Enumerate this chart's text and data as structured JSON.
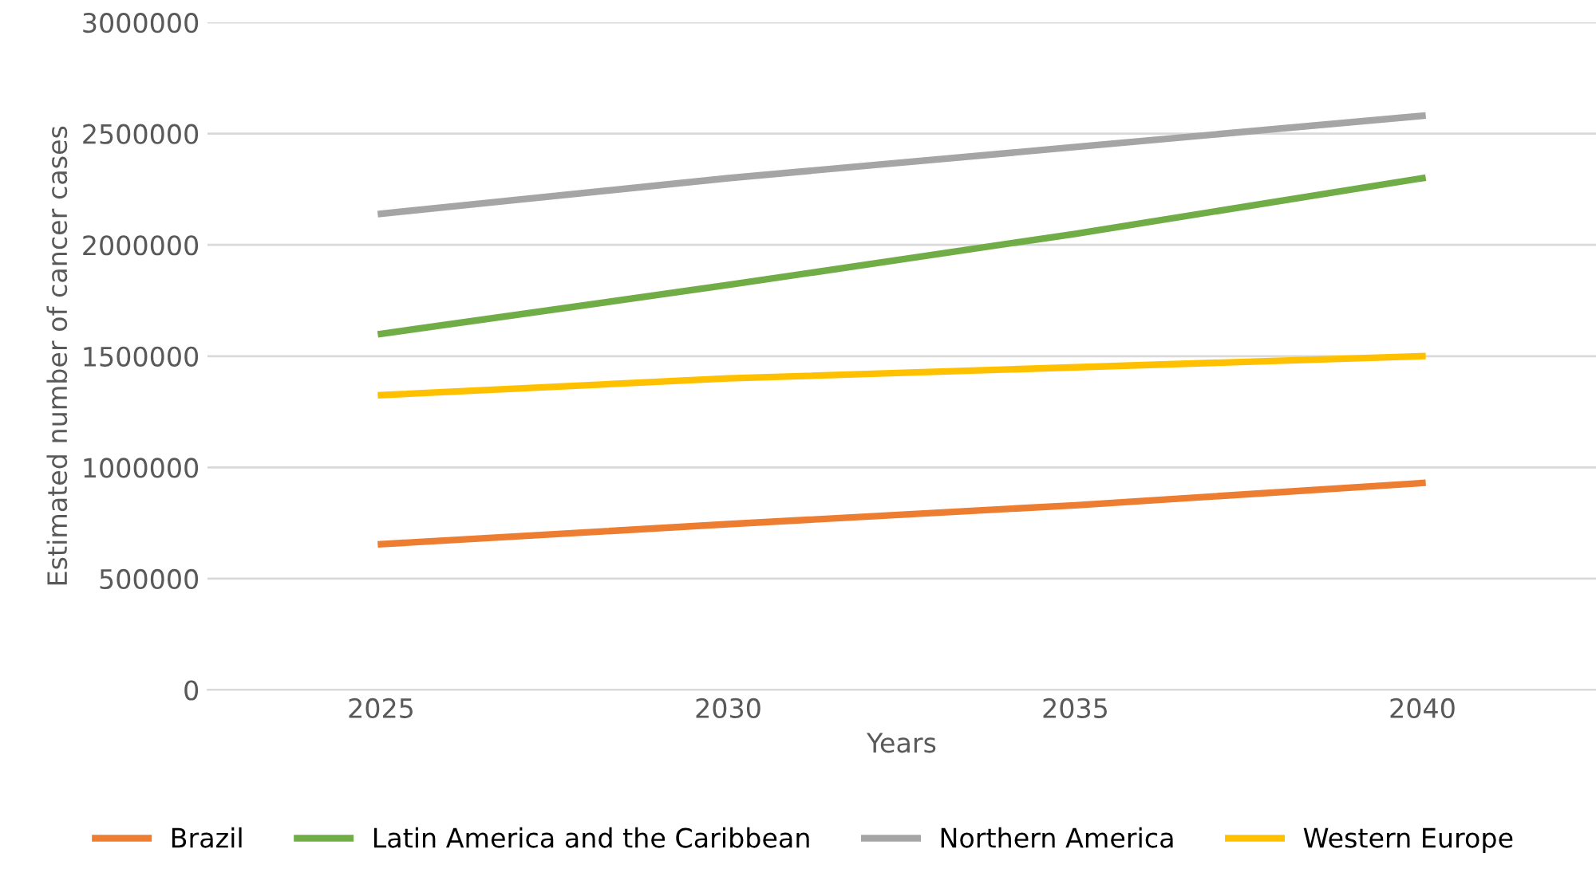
{
  "chart_data": {
    "type": "line",
    "xlabel": "Years",
    "ylabel": "Estimated number of cancer cases",
    "categories": [
      "2025",
      "2030",
      "2035",
      "2040"
    ],
    "series": [
      {
        "name": "Brazil",
        "color": "#ed7d31",
        "values": [
          655000,
          745000,
          830000,
          930000
        ]
      },
      {
        "name": "Latin America and the Caribbean",
        "color": "#70ad47",
        "values": [
          1600000,
          1820000,
          2050000,
          2300000
        ]
      },
      {
        "name": "Northern America",
        "color": "#a5a5a5",
        "values": [
          2140000,
          2300000,
          2440000,
          2580000
        ]
      },
      {
        "name": "Western Europe",
        "color": "#ffc000",
        "values": [
          1325000,
          1400000,
          1450000,
          1500000
        ]
      }
    ],
    "ylim": [
      0,
      3000000
    ],
    "yticks": [
      0,
      500000,
      1000000,
      1500000,
      2000000,
      2500000,
      3000000
    ],
    "grid": "y",
    "legend": "bottom",
    "marker": "none",
    "line_style": "solid"
  }
}
